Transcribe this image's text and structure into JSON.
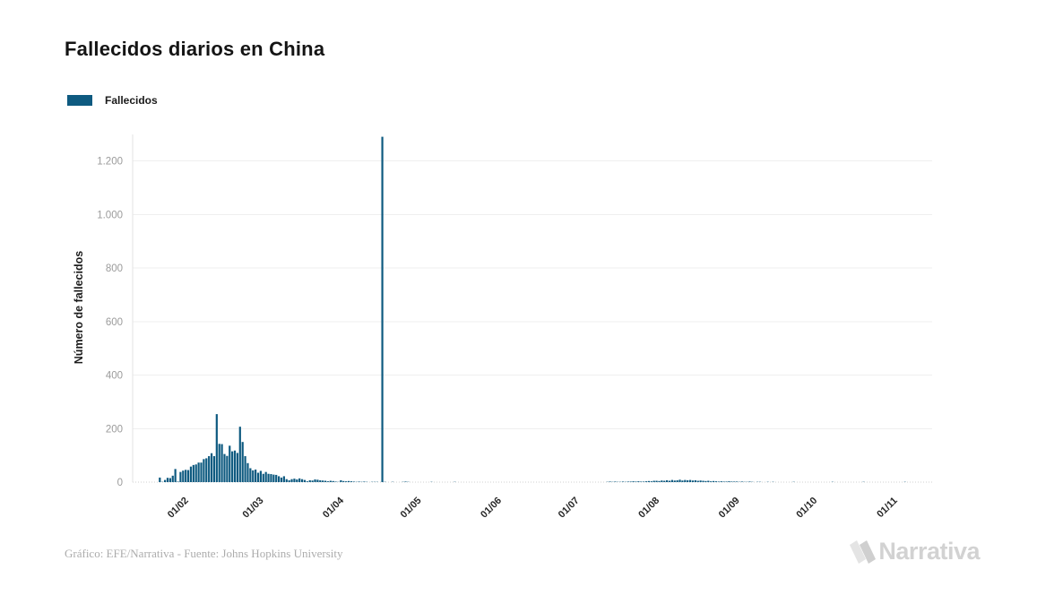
{
  "title": "Fallecidos diarios en China",
  "legend": {
    "label": "Fallecidos",
    "color": "#0e5a80"
  },
  "footer": {
    "credit": "Gráfico: EFE/Narrativa - Fuente: Johns Hopkins University"
  },
  "brand": {
    "name": "Narrativa"
  },
  "colors": {
    "bar": "#0e5a80",
    "grid": "#efefef",
    "zero_line": "#cfcfcf",
    "axis_line": "#e3e3e3",
    "y_tick_text": "#9b9b9b",
    "x_tick_text": "#262626",
    "logo_gray": "#d2d2d2"
  },
  "chart_data": {
    "type": "bar",
    "title": "Fallecidos diarios en China",
    "xlabel": "",
    "ylabel": "Número de fallecidos",
    "legend_position": "top-left",
    "grid": "horizontal",
    "bar_color": "#0e5a80",
    "ylim": [
      0,
      1300
    ],
    "yticks": [
      0,
      200,
      400,
      600,
      800,
      1000,
      1200
    ],
    "ytick_labels": [
      "0",
      "200",
      "400",
      "600",
      "800",
      "1.000",
      "1.200"
    ],
    "x_domain": [
      "2020-01-12",
      "2020-11-16"
    ],
    "xtick_dates": [
      "2020-02-01",
      "2020-03-01",
      "2020-04-01",
      "2020-05-01",
      "2020-06-01",
      "2020-07-01",
      "2020-08-01",
      "2020-09-01",
      "2020-10-01",
      "2020-11-01"
    ],
    "xtick_labels": [
      "01/02",
      "01/03",
      "01/04",
      "01/05",
      "01/06",
      "01/07",
      "01/08",
      "01/09",
      "01/10",
      "01/11"
    ],
    "start_date": "2020-01-22",
    "frequency": "daily",
    "peak_value": 1290,
    "peak_date": "2020-04-17",
    "series": [
      {
        "name": "Fallecidos",
        "values": [
          17,
          1,
          8,
          16,
          15,
          24,
          49,
          2,
          38,
          43,
          46,
          45,
          58,
          64,
          66,
          73,
          73,
          86,
          89,
          97,
          108,
          97,
          254,
          143,
          142,
          105,
          98,
          136,
          115,
          118,
          109,
          207,
          150,
          97,
          71,
          52,
          44,
          47,
          35,
          42,
          31,
          38,
          31,
          30,
          28,
          27,
          22,
          17,
          22,
          11,
          7,
          11,
          13,
          10,
          14,
          11,
          8,
          3,
          7,
          6,
          10,
          9,
          7,
          6,
          5,
          3,
          5,
          4,
          2,
          1,
          7,
          4,
          3,
          4,
          3,
          2,
          1,
          2,
          1,
          2,
          1,
          0,
          1,
          1,
          1,
          0,
          1290,
          1,
          0,
          0,
          1,
          0,
          0,
          0,
          1,
          2,
          1,
          0,
          0,
          0,
          0,
          0,
          0,
          0,
          0,
          1,
          0,
          0,
          0,
          0,
          0,
          0,
          0,
          0,
          1,
          0,
          0,
          0,
          0,
          0,
          0,
          0,
          0,
          0,
          0,
          0,
          0,
          0,
          0,
          0,
          0,
          0,
          0,
          0,
          0,
          0,
          0,
          0,
          0,
          0,
          0,
          0,
          0,
          0,
          0,
          0,
          0,
          0,
          0,
          0,
          0,
          0,
          0,
          0,
          0,
          0,
          0,
          0,
          0,
          0,
          0,
          0,
          0,
          0,
          0,
          0,
          0,
          0,
          0,
          0,
          0,
          0,
          0,
          1,
          2,
          1,
          2,
          1,
          1,
          2,
          1,
          2,
          2,
          3,
          2,
          3,
          2,
          2,
          3,
          4,
          3,
          5,
          5,
          4,
          6,
          5,
          7,
          5,
          8,
          6,
          7,
          9,
          6,
          8,
          7,
          8,
          6,
          7,
          5,
          6,
          5,
          4,
          5,
          3,
          4,
          3,
          2,
          3,
          2,
          2,
          3,
          2,
          2,
          2,
          1,
          2,
          1,
          1,
          2,
          1,
          0,
          1,
          1,
          0,
          0,
          1,
          0,
          1,
          0,
          0,
          0,
          0,
          0,
          0,
          0,
          1,
          0,
          0,
          0,
          0,
          0,
          0,
          0,
          0,
          0,
          0,
          0,
          0,
          0,
          0,
          1,
          0,
          0,
          0,
          0,
          0,
          0,
          0,
          0,
          0,
          0,
          0,
          1,
          0,
          0,
          0,
          0,
          0,
          0,
          0,
          0,
          0,
          0,
          0,
          0,
          0,
          0,
          0,
          1,
          0,
          0,
          0,
          0,
          0
        ]
      }
    ]
  }
}
